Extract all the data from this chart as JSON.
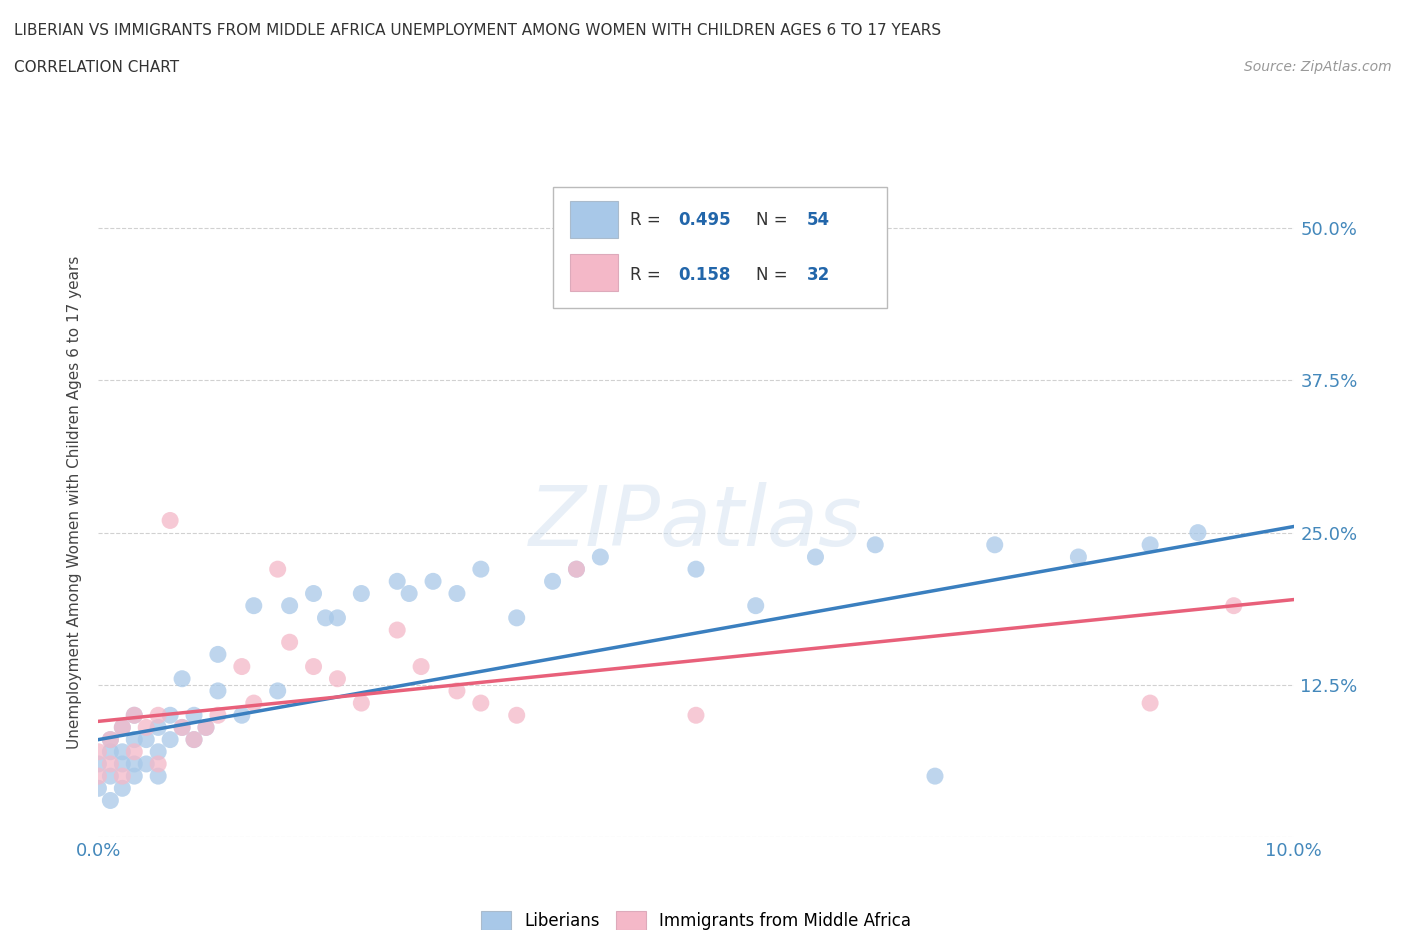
{
  "title_line1": "LIBERIAN VS IMMIGRANTS FROM MIDDLE AFRICA UNEMPLOYMENT AMONG WOMEN WITH CHILDREN AGES 6 TO 17 YEARS",
  "title_line2": "CORRELATION CHART",
  "source_text": "Source: ZipAtlas.com",
  "ylabel": "Unemployment Among Women with Children Ages 6 to 17 years",
  "xlim": [
    0.0,
    0.1
  ],
  "ylim": [
    0.0,
    0.55
  ],
  "xticks": [
    0.0,
    0.02,
    0.04,
    0.06,
    0.08,
    0.1
  ],
  "xticklabels": [
    "0.0%",
    "",
    "",
    "",
    "",
    "10.0%"
  ],
  "yticks": [
    0.0,
    0.125,
    0.25,
    0.375,
    0.5
  ],
  "yticklabels_right": [
    "",
    "12.5%",
    "25.0%",
    "37.5%",
    "50.0%"
  ],
  "R_liberian": 0.495,
  "N_liberian": 54,
  "R_immigrant": 0.158,
  "N_immigrant": 32,
  "blue_color": "#A8C8E8",
  "pink_color": "#F4B8C8",
  "blue_line_color": "#3A7FBF",
  "pink_line_color": "#E8607A",
  "watermark": "ZIPatlas",
  "liberian_x": [
    0.0,
    0.0,
    0.001,
    0.001,
    0.001,
    0.001,
    0.002,
    0.002,
    0.002,
    0.002,
    0.003,
    0.003,
    0.003,
    0.003,
    0.004,
    0.004,
    0.005,
    0.005,
    0.005,
    0.006,
    0.006,
    0.007,
    0.007,
    0.008,
    0.008,
    0.009,
    0.01,
    0.01,
    0.012,
    0.013,
    0.015,
    0.016,
    0.018,
    0.019,
    0.02,
    0.022,
    0.025,
    0.026,
    0.028,
    0.03,
    0.032,
    0.035,
    0.038,
    0.04,
    0.042,
    0.05,
    0.055,
    0.06,
    0.065,
    0.07,
    0.075,
    0.082,
    0.088,
    0.092
  ],
  "liberian_y": [
    0.04,
    0.06,
    0.03,
    0.05,
    0.07,
    0.08,
    0.04,
    0.06,
    0.07,
    0.09,
    0.05,
    0.06,
    0.08,
    0.1,
    0.06,
    0.08,
    0.05,
    0.07,
    0.09,
    0.08,
    0.1,
    0.09,
    0.13,
    0.08,
    0.1,
    0.09,
    0.12,
    0.15,
    0.1,
    0.19,
    0.12,
    0.19,
    0.2,
    0.18,
    0.18,
    0.2,
    0.21,
    0.2,
    0.21,
    0.2,
    0.22,
    0.18,
    0.21,
    0.22,
    0.23,
    0.22,
    0.19,
    0.23,
    0.24,
    0.05,
    0.24,
    0.23,
    0.24,
    0.25
  ],
  "immigrant_x": [
    0.0,
    0.0,
    0.001,
    0.001,
    0.002,
    0.002,
    0.003,
    0.003,
    0.004,
    0.005,
    0.005,
    0.006,
    0.007,
    0.008,
    0.009,
    0.01,
    0.012,
    0.013,
    0.015,
    0.016,
    0.018,
    0.02,
    0.022,
    0.025,
    0.027,
    0.03,
    0.032,
    0.035,
    0.04,
    0.05,
    0.088,
    0.095
  ],
  "immigrant_y": [
    0.05,
    0.07,
    0.06,
    0.08,
    0.05,
    0.09,
    0.07,
    0.1,
    0.09,
    0.06,
    0.1,
    0.26,
    0.09,
    0.08,
    0.09,
    0.1,
    0.14,
    0.11,
    0.22,
    0.16,
    0.14,
    0.13,
    0.11,
    0.17,
    0.14,
    0.12,
    0.11,
    0.1,
    0.22,
    0.1,
    0.11,
    0.19
  ],
  "blue_line_x0": 0.0,
  "blue_line_y0": 0.08,
  "blue_line_x1": 0.1,
  "blue_line_y1": 0.255,
  "pink_line_x0": 0.0,
  "pink_line_y0": 0.095,
  "pink_line_x1": 0.1,
  "pink_line_y1": 0.195
}
